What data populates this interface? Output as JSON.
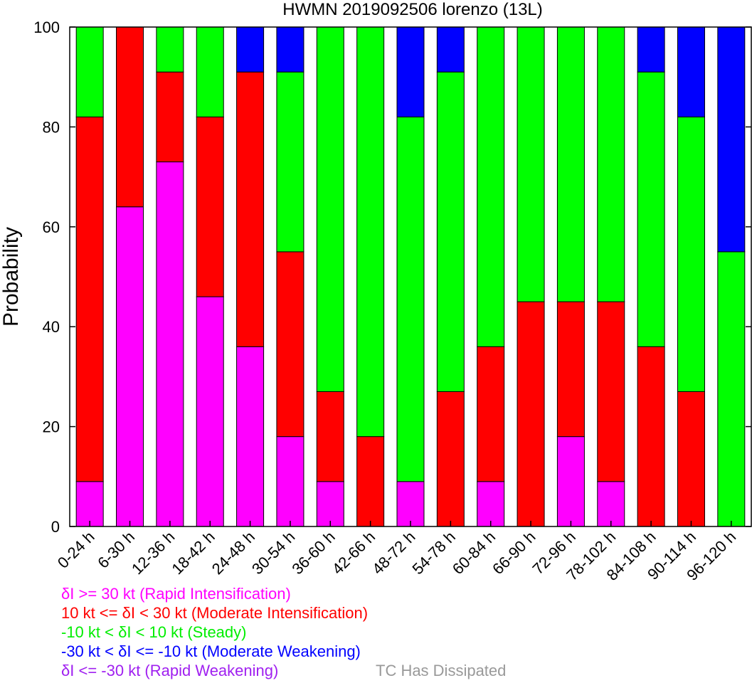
{
  "chart_data": {
    "type": "bar",
    "stacked": true,
    "title": "HWMN 2019092506 lorenzo (13L)",
    "ylabel": "Probability",
    "xlabel": "",
    "ylim": [
      0,
      100
    ],
    "yticks": [
      0,
      20,
      40,
      60,
      80,
      100
    ],
    "grid": false,
    "categories": [
      "0-24 h",
      "6-30 h",
      "12-36 h",
      "18-42 h",
      "24-48 h",
      "30-54 h",
      "36-60 h",
      "42-66 h",
      "48-72 h",
      "54-78 h",
      "60-84 h",
      "66-90 h",
      "72-96 h",
      "78-102 h",
      "84-108 h",
      "90-114 h",
      "96-120 h"
    ],
    "series": [
      {
        "key": "ri",
        "color": "#ff00ff",
        "values": [
          9,
          64,
          73,
          46,
          36,
          18,
          9,
          0,
          9,
          0,
          9,
          0,
          18,
          9,
          0,
          0,
          0
        ]
      },
      {
        "key": "mi",
        "color": "#ff0000",
        "values": [
          73,
          36,
          18,
          36,
          55,
          37,
          18,
          18,
          0,
          27,
          27,
          45,
          27,
          36,
          36,
          27,
          0
        ]
      },
      {
        "key": "steady",
        "color": "#00ff00",
        "values": [
          18,
          0,
          9,
          18,
          0,
          36,
          73,
          82,
          73,
          64,
          64,
          55,
          55,
          55,
          55,
          55,
          55
        ]
      },
      {
        "key": "mw",
        "color": "#0000ff",
        "values": [
          0,
          0,
          0,
          0,
          9,
          9,
          0,
          0,
          18,
          9,
          0,
          0,
          0,
          0,
          9,
          18,
          45
        ]
      },
      {
        "key": "rw",
        "color": "#a020f0",
        "values": [
          0,
          0,
          0,
          0,
          0,
          0,
          0,
          0,
          0,
          0,
          0,
          0,
          0,
          0,
          0,
          0,
          0
        ]
      }
    ],
    "legend": [
      {
        "text": "δI >= 30 kt (Rapid Intensification)",
        "color": "#ff00ff"
      },
      {
        "text": "10 kt <= δI < 30 kt (Moderate Intensification)",
        "color": "#ff0000"
      },
      {
        "text": "-10 kt < δI < 10 kt (Steady)",
        "color": "#00ee00"
      },
      {
        "text": "-30 kt < δI <= -10 kt (Moderate Weakening)",
        "color": "#0000ff"
      },
      {
        "text": "δI <= -30 kt (Rapid Weakening)",
        "color": "#a020f0"
      },
      {
        "text": "TC Has Dissipated",
        "color": "#999999"
      }
    ],
    "legend_position": "bottom-left"
  }
}
